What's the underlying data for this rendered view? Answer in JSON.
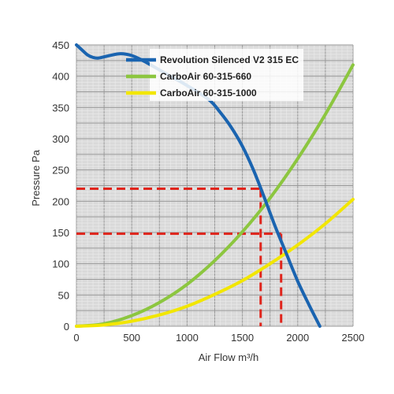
{
  "chart_data": {
    "type": "line",
    "xlabel": "Air Flow m³/h",
    "ylabel": "Pressure Pa",
    "xlim": [
      0,
      2500
    ],
    "ylim": [
      0,
      450
    ],
    "x_ticks": [
      0,
      500,
      1000,
      1500,
      2000,
      2500
    ],
    "y_ticks": [
      0,
      50,
      100,
      150,
      200,
      250,
      300,
      350,
      400,
      450
    ],
    "grid": true,
    "legend_position": "top-right",
    "series": [
      {
        "name": "Revolution Silenced V2 315 EC",
        "color": "#1a64b0",
        "x": [
          0,
          50,
          100,
          150,
          200,
          300,
          400,
          500,
          600,
          800,
          1000,
          1200,
          1300,
          1400,
          1500,
          1600,
          1700,
          1800,
          1900,
          2000,
          2100,
          2200
        ],
        "y": [
          450,
          442,
          434,
          430,
          429,
          433,
          436,
          433,
          425,
          405,
          385,
          362,
          342,
          318,
          288,
          250,
          205,
          158,
          115,
          72,
          35,
          0
        ]
      },
      {
        "name": "CarboAir 60-315-660",
        "color": "#8cc63f",
        "x": [
          0,
          250,
          500,
          750,
          1000,
          1250,
          1500,
          1750,
          2000,
          2250,
          2500
        ],
        "y": [
          0,
          4,
          17,
          38,
          67,
          105,
          151,
          205,
          268,
          339,
          418
        ]
      },
      {
        "name": "CarboAir 60-315-1000",
        "color": "#f2e600",
        "x": [
          0,
          250,
          500,
          750,
          1000,
          1250,
          1500,
          1750,
          2000,
          2250,
          2500
        ],
        "y": [
          0,
          2,
          8,
          18,
          32,
          51,
          73,
          100,
          130,
          164,
          203
        ]
      }
    ],
    "annotations": [
      {
        "type": "operating-point",
        "color": "#e0241b",
        "x": 1665,
        "y": 220
      },
      {
        "type": "operating-point",
        "color": "#e0241b",
        "x": 1850,
        "y": 148
      }
    ]
  }
}
